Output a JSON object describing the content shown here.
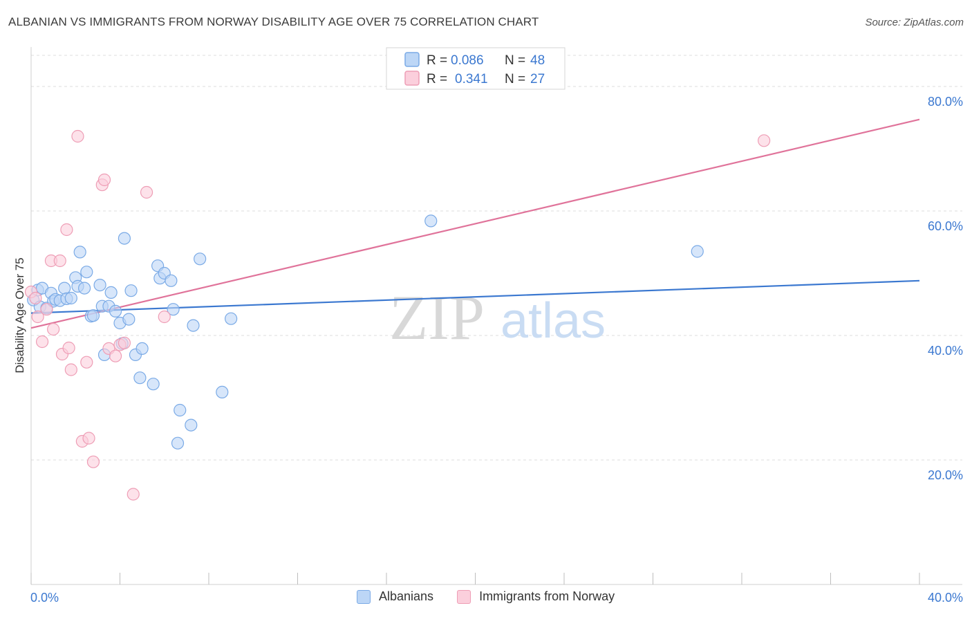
{
  "header": {
    "title": "ALBANIAN VS IMMIGRANTS FROM NORWAY DISABILITY AGE OVER 75 CORRELATION CHART",
    "source": "Source: ZipAtlas.com"
  },
  "watermark": {
    "zip": "ZIP",
    "atlas": "atlas"
  },
  "colors": {
    "blue_fill": "#bcd6f6",
    "blue_stroke": "#7aaae6",
    "blue_line": "#3b78d0",
    "pink_fill": "#fbcfdc",
    "pink_stroke": "#ee9db5",
    "pink_line": "#e0739a",
    "value_text": "#3b78d0",
    "grid": "#dcdcdc"
  },
  "legend": {
    "rows": [
      {
        "r_label": "R =",
        "r_value": "0.086",
        "n_label": "N =",
        "n_value": "48"
      },
      {
        "r_label": "R =",
        "r_value": "0.341",
        "n_label": "N =",
        "n_value": "27"
      }
    ]
  },
  "chart_data": {
    "type": "scatter",
    "title": "ALBANIAN VS IMMIGRANTS FROM NORWAY DISABILITY AGE OVER 75 CORRELATION CHART",
    "xlabel": "",
    "ylabel": "Disability Age Over 75",
    "xlim": [
      0,
      40
    ],
    "ylim": [
      0,
      85
    ],
    "x_ticks": [
      "0.0%",
      "40.0%"
    ],
    "y_ticks": [
      {
        "value": 20,
        "label": "20.0%"
      },
      {
        "value": 40,
        "label": "40.0%"
      },
      {
        "value": 60,
        "label": "60.0%"
      },
      {
        "value": 80,
        "label": "80.0%"
      }
    ],
    "grid": true,
    "legend_position": "top-center",
    "series": [
      {
        "name": "Albanians",
        "color": "#7aaae6",
        "r": 0.086,
        "n": 48,
        "trend": {
          "x": [
            0,
            40
          ],
          "y": [
            43.6,
            48.8
          ]
        },
        "points": [
          [
            0.1,
            45.7
          ],
          [
            0.3,
            47.3
          ],
          [
            0.4,
            44.6
          ],
          [
            0.5,
            47.6
          ],
          [
            0.7,
            44.4
          ],
          [
            0.9,
            46.8
          ],
          [
            1.0,
            45.5
          ],
          [
            1.1,
            45.8
          ],
          [
            1.3,
            45.6
          ],
          [
            1.5,
            47.6
          ],
          [
            1.6,
            45.9
          ],
          [
            1.8,
            46.0
          ],
          [
            2.0,
            49.3
          ],
          [
            2.1,
            47.9
          ],
          [
            2.2,
            53.4
          ],
          [
            2.4,
            47.6
          ],
          [
            2.5,
            50.2
          ],
          [
            2.7,
            43.1
          ],
          [
            2.8,
            43.2
          ],
          [
            3.1,
            48.1
          ],
          [
            3.2,
            44.7
          ],
          [
            3.3,
            36.9
          ],
          [
            3.5,
            44.7
          ],
          [
            3.6,
            46.9
          ],
          [
            3.8,
            43.9
          ],
          [
            4.0,
            42.0
          ],
          [
            4.1,
            38.7
          ],
          [
            4.2,
            55.6
          ],
          [
            4.4,
            42.6
          ],
          [
            4.5,
            47.2
          ],
          [
            4.7,
            36.9
          ],
          [
            4.9,
            33.2
          ],
          [
            5.0,
            37.9
          ],
          [
            5.5,
            32.2
          ],
          [
            5.7,
            51.2
          ],
          [
            5.8,
            49.2
          ],
          [
            6.0,
            50.0
          ],
          [
            6.3,
            48.8
          ],
          [
            6.4,
            44.2
          ],
          [
            6.6,
            22.7
          ],
          [
            6.7,
            28.0
          ],
          [
            7.2,
            25.6
          ],
          [
            7.3,
            41.6
          ],
          [
            7.6,
            52.3
          ],
          [
            8.6,
            30.9
          ],
          [
            9.0,
            42.7
          ],
          [
            18.0,
            58.4
          ],
          [
            30.0,
            53.5
          ]
        ]
      },
      {
        "name": "Immigrants from Norway",
        "color": "#ee9db5",
        "r": 0.341,
        "n": 27,
        "trend": {
          "x": [
            0,
            40
          ],
          "y": [
            41.2,
            74.7
          ]
        },
        "points": [
          [
            0.0,
            47.0
          ],
          [
            0.2,
            46.0
          ],
          [
            0.3,
            43.0
          ],
          [
            0.5,
            39.0
          ],
          [
            0.7,
            44.2
          ],
          [
            0.9,
            52.0
          ],
          [
            1.0,
            41.0
          ],
          [
            1.3,
            52.0
          ],
          [
            1.4,
            37.0
          ],
          [
            1.6,
            57.0
          ],
          [
            1.7,
            38.0
          ],
          [
            1.8,
            34.5
          ],
          [
            2.1,
            72.0
          ],
          [
            2.3,
            23.0
          ],
          [
            2.5,
            35.7
          ],
          [
            2.6,
            23.5
          ],
          [
            2.8,
            19.7
          ],
          [
            3.2,
            64.2
          ],
          [
            3.3,
            65.0
          ],
          [
            3.5,
            37.9
          ],
          [
            3.8,
            36.7
          ],
          [
            4.0,
            38.5
          ],
          [
            4.2,
            38.8
          ],
          [
            4.6,
            14.5
          ],
          [
            5.2,
            63.0
          ],
          [
            6.0,
            43.0
          ],
          [
            33.0,
            71.3
          ]
        ]
      }
    ]
  }
}
